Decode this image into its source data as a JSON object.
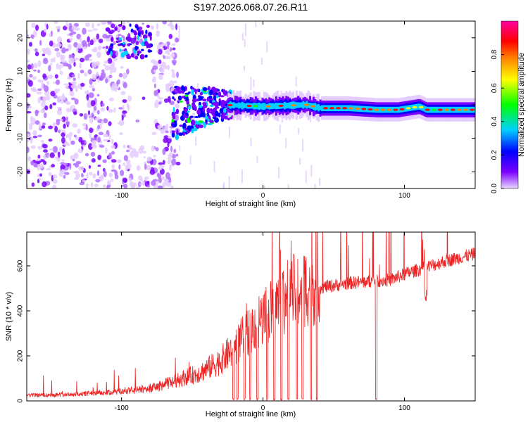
{
  "title": "S197.2026.068.07.26.R11",
  "chart_data": [
    {
      "type": "heatmap",
      "xlabel": "Height of straight line (km)",
      "ylabel": "Frequency (Hz)",
      "xlim": [
        -167,
        150
      ],
      "ylim": [
        -25,
        25
      ],
      "x_ticks": [
        -100,
        0,
        100
      ],
      "x_ticklabels": [
        "-100",
        "0",
        "100"
      ],
      "y_ticks": [
        -20,
        -10,
        0,
        10,
        20
      ],
      "y_ticklabels": [
        "-20",
        "-10",
        "0",
        "10",
        "20"
      ],
      "colorbar": {
        "label": "Normalized spectral amplitude",
        "range": [
          0,
          1
        ],
        "ticks": [
          0,
          0.2,
          0.4,
          0.6,
          0.8
        ],
        "ticklabels": [
          "0.0",
          "0.2",
          "0.4",
          "0.6",
          "0.8"
        ],
        "colors": [
          "#e8d6ff",
          "#7a00ff",
          "#0000ff",
          "#00d0ff",
          "#00ff00",
          "#ffff00",
          "#ff8000",
          "#ff0000",
          "#ff00a0"
        ]
      },
      "ridge": {
        "description_values": "dominant frequency (Hz) vs height (km)",
        "x": [
          -60,
          -30,
          0,
          30,
          40,
          60,
          80,
          95,
          110,
          115,
          130,
          150
        ],
        "y": [
          -2,
          0,
          -0.5,
          0,
          -1,
          -1,
          -1.5,
          -1.5,
          -0.5,
          -1.5,
          -1.5,
          -1.5
        ]
      },
      "noise_region_x": [
        -167,
        -60
      ]
    },
    {
      "type": "line",
      "xlabel": "Height of straight line (km)",
      "ylabel": "SNR (10 * v/v)",
      "xlim": [
        -167,
        150
      ],
      "ylim": [
        0,
        750
      ],
      "x_ticks": [
        -100,
        0,
        100
      ],
      "x_ticklabels": [
        "-100",
        "0",
        "100"
      ],
      "y_ticks": [
        0,
        200,
        400,
        600
      ],
      "y_ticklabels": [
        "0",
        "200",
        "400",
        "600"
      ],
      "color": "#ee2222",
      "series": [
        {
          "name": "SNR",
          "x": [
            -167,
            -150,
            -130,
            -110,
            -90,
            -75,
            -60,
            -45,
            -30,
            -20,
            -10,
            0,
            10,
            20,
            30,
            40,
            50,
            60,
            70,
            80,
            90,
            100,
            110,
            120,
            130,
            140,
            150
          ],
          "y": [
            25,
            25,
            30,
            35,
            45,
            60,
            90,
            120,
            170,
            230,
            300,
            360,
            410,
            460,
            490,
            500,
            510,
            520,
            525,
            530,
            535,
            560,
            580,
            600,
            620,
            635,
            650
          ]
        }
      ],
      "dropouts_x": [
        -21,
        -18,
        -13,
        -9,
        -4,
        3,
        8,
        13,
        18,
        24,
        28,
        34,
        38,
        80
      ]
    }
  ]
}
